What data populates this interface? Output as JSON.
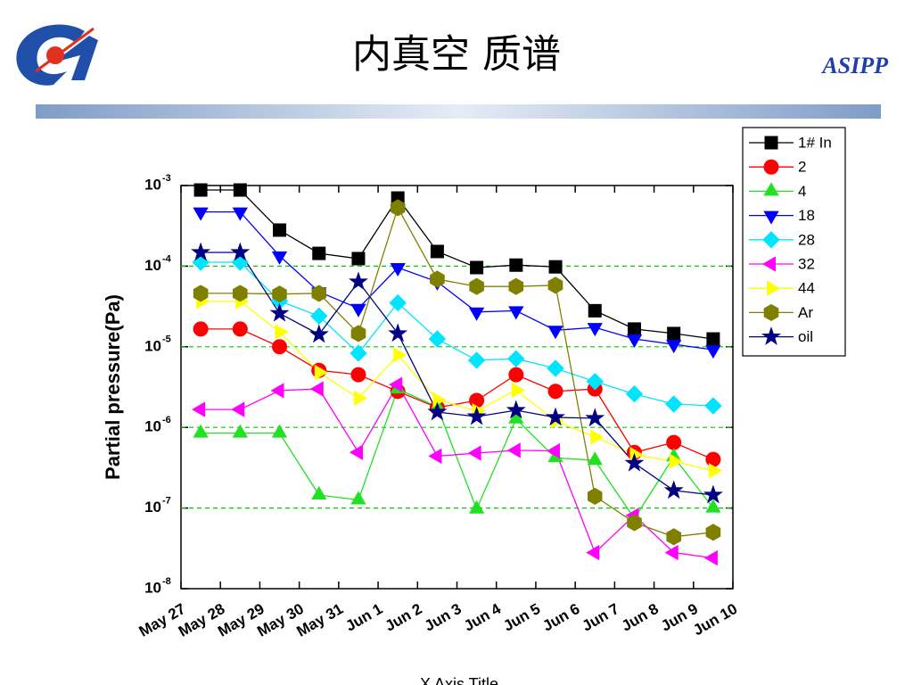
{
  "header": {
    "title": "内真空 质谱",
    "org": "ASIPP"
  },
  "chart_data": {
    "type": "line",
    "ylabel": "Partial pressure(Pa)",
    "xlabel": "X Axis Title",
    "xticks": [
      "May 27",
      "May 28",
      "May 29",
      "May 30",
      "May 31",
      "Jun 1",
      "Jun 2",
      "Jun 3",
      "Jun 4",
      "Jun 5",
      "Jun 6",
      "Jun 7",
      "Jun 8",
      "Jun 9",
      "Jun 10"
    ],
    "log_y": true,
    "ylim": [
      1e-08,
      0.001
    ],
    "yticks": [
      {
        "value": 1e-08,
        "label": "10",
        "exponent": "-8"
      },
      {
        "value": 1e-07,
        "label": "10",
        "exponent": "-7"
      },
      {
        "value": 1e-06,
        "label": "10",
        "exponent": "-6"
      },
      {
        "value": 1e-05,
        "label": "10",
        "exponent": "-5"
      },
      {
        "value": 0.0001,
        "label": "10",
        "exponent": "-4"
      },
      {
        "value": 0.001,
        "label": "10",
        "exponent": "-3"
      }
    ],
    "grid": true,
    "grid_color": "#00cc00",
    "legend": "upper right",
    "series": [
      {
        "name": "1# In",
        "color": "#000000",
        "marker": "square",
        "values": [
          0.00088,
          0.00088,
          0.00028,
          0.000144,
          0.000124,
          0.0007,
          0.000152,
          9.6e-05,
          0.000103,
          9.8e-05,
          2.8e-05,
          1.66e-05,
          1.46e-05,
          1.25e-05
        ]
      },
      {
        "name": "2",
        "color": "#ff0000",
        "marker": "circle",
        "values": [
          1.66e-05,
          1.66e-05,
          1e-05,
          5.1e-06,
          4.5e-06,
          2.8e-06,
          1.76e-06,
          2.16e-06,
          4.5e-06,
          2.8e-06,
          3e-06,
          4.9e-07,
          6.5e-07,
          4e-07
        ]
      },
      {
        "name": "4",
        "color": "#22e022",
        "marker": "triangle-up",
        "values": [
          8.5e-07,
          8.5e-07,
          8.5e-07,
          1.45e-07,
          1.26e-07,
          3e-06,
          1.8e-06,
          9.7e-08,
          1.27e-06,
          4.2e-07,
          3.9e-07,
          7.4e-08,
          4.3e-07,
          1e-07
        ]
      },
      {
        "name": "18",
        "color": "#0000ff",
        "marker": "triangle-down",
        "values": [
          0.00047,
          0.00047,
          0.000134,
          4.8e-05,
          3e-05,
          9.6e-05,
          6.4e-05,
          2.7e-05,
          2.8e-05,
          1.6e-05,
          1.74e-05,
          1.25e-05,
          1.07e-05,
          9.2e-06
        ]
      },
      {
        "name": "28",
        "color": "#00e5ff",
        "marker": "diamond",
        "values": [
          0.000112,
          0.000112,
          3.7e-05,
          2.4e-05,
          8.3e-06,
          3.5e-05,
          1.25e-05,
          6.8e-06,
          7.1e-06,
          5.4e-06,
          3.7e-06,
          2.6e-06,
          1.95e-06,
          1.85e-06
        ]
      },
      {
        "name": "32",
        "color": "#ff00ff",
        "marker": "triangle-left",
        "values": [
          1.67e-06,
          1.67e-06,
          2.86e-06,
          3e-06,
          4.9e-07,
          3.4e-06,
          4.4e-07,
          4.8e-07,
          5.2e-07,
          5.1e-07,
          2.8e-08,
          8.1e-08,
          2.8e-08,
          2.4e-08
        ]
      },
      {
        "name": "44",
        "color": "#ffff00",
        "marker": "triangle-right",
        "values": [
          3.65e-05,
          3.65e-05,
          1.53e-05,
          4.8e-06,
          2.3e-06,
          7.9e-06,
          2.2e-06,
          1.6e-06,
          2.9e-06,
          1.2e-06,
          7.6e-07,
          4.6e-07,
          3.8e-07,
          2.9e-07
        ]
      },
      {
        "name": "Ar",
        "color": "#808000",
        "marker": "hexagon",
        "values": [
          4.6e-05,
          4.6e-05,
          4.5e-05,
          4.6e-05,
          1.46e-05,
          0.00053,
          6.9e-05,
          5.6e-05,
          5.6e-05,
          5.8e-05,
          1.4e-07,
          6.6e-08,
          4.4e-08,
          5e-08
        ]
      },
      {
        "name": "oil",
        "color": "#000080",
        "marker": "star",
        "values": [
          0.000148,
          0.000148,
          2.6e-05,
          1.42e-05,
          6.4e-05,
          1.46e-05,
          1.55e-06,
          1.36e-06,
          1.63e-06,
          1.33e-06,
          1.3e-06,
          3.6e-07,
          1.65e-07,
          1.45e-07
        ]
      }
    ]
  }
}
